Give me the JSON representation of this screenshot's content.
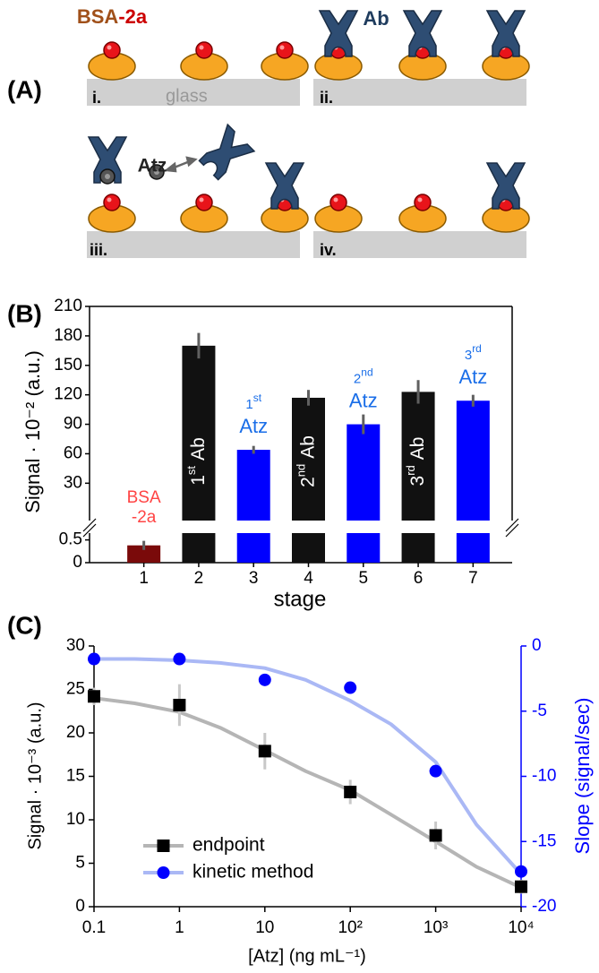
{
  "panel_a": {
    "label": "(A)",
    "title_parts": [
      "BSA",
      "-2a"
    ],
    "ab_label": "Ab",
    "atz_label": "Atz",
    "substrate_label": "glass",
    "steps": [
      "i.",
      "ii.",
      "iii.",
      "iv."
    ]
  },
  "chart_data": [
    {
      "type": "bar",
      "panel_label": "(B)",
      "ylabel": "Signal · 10⁻² (a.u.)",
      "xlabel": "stage",
      "categories": [
        "1",
        "2",
        "3",
        "4",
        "5",
        "6",
        "7"
      ],
      "values": [
        0.38,
        170,
        64,
        117,
        90,
        123,
        114
      ],
      "errors": [
        0.1,
        13,
        4,
        8,
        10,
        12,
        6
      ],
      "colors": [
        "#7a0a0a",
        "#111111",
        "#0000ff",
        "#111111",
        "#0000ff",
        "#111111",
        "#0000ff"
      ],
      "error_color": "#606060",
      "ylim": [
        -8,
        210
      ],
      "yticks": [
        30,
        60,
        90,
        120,
        150,
        180,
        210
      ],
      "ylim_lower": [
        0,
        0.65
      ],
      "yticks_lower": [
        0,
        0.5
      ],
      "axis_break": true,
      "bar_labels": [
        {
          "lines": [
            "BSA",
            "-2a"
          ],
          "color": "#ff4444"
        },
        {
          "ordinal": "1",
          "suffix": "st",
          "text": "Ab",
          "color": "#ffffff",
          "rotated": true
        },
        {
          "ordinal": "1",
          "suffix": "st",
          "text": "Atz",
          "color": "#1a6ee8"
        },
        {
          "ordinal": "2",
          "suffix": "nd",
          "text": "Ab",
          "color": "#ffffff",
          "rotated": true
        },
        {
          "ordinal": "2",
          "suffix": "nd",
          "text": "Atz",
          "color": "#1a6ee8"
        },
        {
          "ordinal": "3",
          "suffix": "rd",
          "text": "Ab",
          "color": "#ffffff",
          "rotated": true
        },
        {
          "ordinal": "3",
          "suffix": "rd",
          "text": "Atz",
          "color": "#1a6ee8"
        }
      ]
    },
    {
      "type": "scatter",
      "panel_label": "(C)",
      "xlabel": "[Atz] (ng mL⁻¹)",
      "ylabel": "Signal · 10⁻³ (a.u.)",
      "y2label": "Slope (signal/sec)",
      "x": [
        0.1,
        1,
        10,
        100,
        1000,
        10000
      ],
      "xscale": "log",
      "xlim": [
        0.1,
        10000
      ],
      "xticks": [
        0.1,
        1,
        10,
        {
          "value": 100,
          "label": "10²"
        },
        {
          "value": 1000,
          "label": "10³"
        },
        {
          "value": 10000,
          "label": "10⁴"
        }
      ],
      "ylim": [
        0,
        30
      ],
      "yticks": [
        0,
        5,
        10,
        15,
        20,
        25,
        30
      ],
      "y2lim": [
        -20,
        0
      ],
      "y2ticks": [
        0,
        -5,
        -10,
        -15,
        -20
      ],
      "y2color": "#0000ff",
      "legend": "lower-left",
      "series": [
        {
          "name": "endpoint",
          "color": "#000000",
          "line_color": "#b5b5b5",
          "marker": "square",
          "values": [
            24.2,
            23.2,
            17.9,
            13.2,
            8.2,
            2.3
          ],
          "errors": [
            1.0,
            2.4,
            2.1,
            1.4,
            1.6,
            0.8
          ],
          "error_color": "#c8c8c8",
          "fit_x": [
            0.1,
            0.3,
            1,
            3,
            10,
            30,
            100,
            300,
            1000,
            3000,
            10000
          ],
          "fit_values": [
            24.0,
            23.4,
            22.4,
            20.6,
            18.0,
            15.6,
            13.4,
            10.6,
            7.5,
            4.6,
            2.2
          ]
        },
        {
          "name": "kinetic method",
          "axis": "y2",
          "color": "#0000ff",
          "line_color": "#aab8f5",
          "marker": "circle",
          "values": [
            -1.0,
            -1.0,
            -2.6,
            -3.2,
            -9.6,
            -17.3
          ],
          "fit_x": [
            0.1,
            0.3,
            1,
            3,
            10,
            30,
            100,
            300,
            1000,
            3000,
            10000
          ],
          "fit_values": [
            -1.0,
            -1.0,
            -1.1,
            -1.3,
            -1.7,
            -2.6,
            -4.2,
            -6.0,
            -8.9,
            -13.7,
            -17.5
          ]
        }
      ]
    }
  ]
}
